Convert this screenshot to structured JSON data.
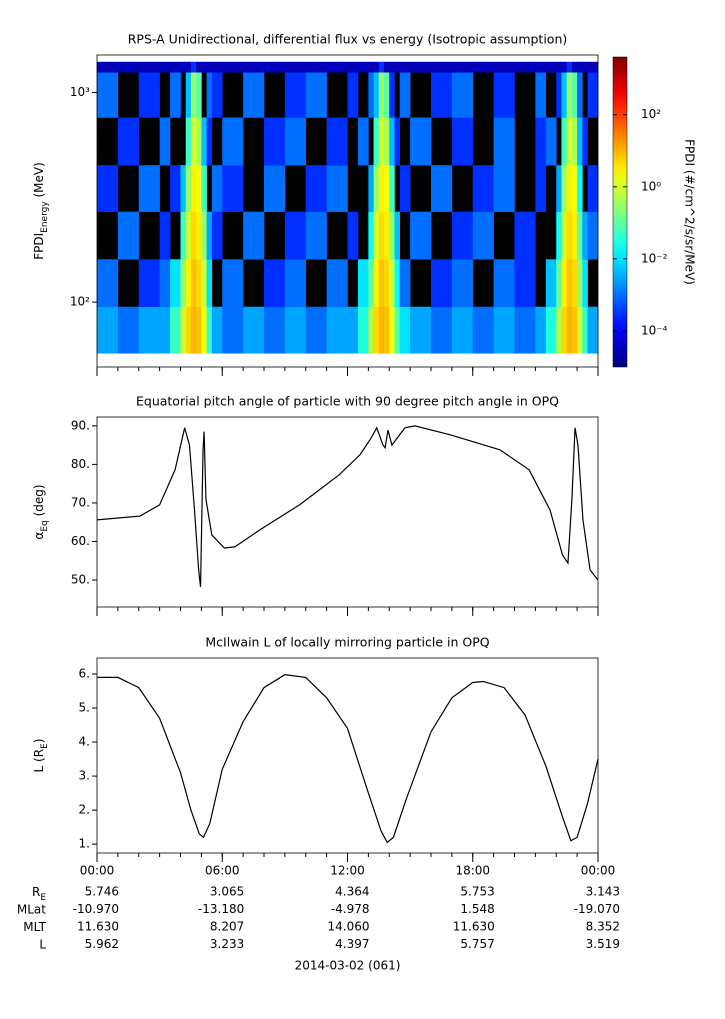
{
  "chart_data": [
    {
      "type": "heatmap",
      "title": "RPS-A Unidirectional, differential flux vs energy (Isotropic assumption)",
      "ylabel": {
        "text": "FPDI",
        "sub": "Energy",
        "tail": " (MeV)"
      },
      "zlabel": "FPDI (#/cm^2/s/sr/MeV)",
      "ylog": true,
      "ylim": [
        49,
        1510
      ],
      "yticks": [
        {
          "value": 100,
          "label": "10²"
        },
        {
          "value": 1000,
          "label": "10³"
        }
      ],
      "xlim": [
        0,
        24
      ],
      "xticks": [
        0,
        6,
        12,
        18,
        24
      ],
      "zlog": true,
      "zlim": [
        1e-05,
        4000
      ],
      "zticks": [
        {
          "value": 100,
          "label": "10²"
        },
        {
          "value": 1,
          "label": "10⁰"
        },
        {
          "value": 0.01,
          "label": "10⁻²"
        },
        {
          "value": 0.0001,
          "label": "10⁻⁴"
        }
      ],
      "colormap": "jet",
      "null_color": "#000000",
      "x_edges": [
        0,
        1,
        2,
        3,
        3.5,
        4,
        4.25,
        4.5,
        4.75,
        5,
        5.25,
        5.5,
        6,
        7,
        8,
        9,
        10,
        11,
        12,
        12.5,
        13,
        13.25,
        13.5,
        13.75,
        14,
        14.25,
        14.5,
        15,
        16,
        17,
        18,
        19,
        20,
        21,
        21.5,
        22,
        22.25,
        22.5,
        22.75,
        23,
        23.25,
        23.5,
        24
      ],
      "y_edges": [
        57,
        95,
        160,
        270,
        450,
        760,
        1250,
        1400
      ],
      "z": [
        [
          0.003,
          0.001,
          0.003,
          0.003,
          0.05,
          1,
          5,
          10,
          8,
          2,
          0.05,
          0.003,
          0.001,
          0.003,
          0.001,
          0.003,
          0.001,
          0.003,
          0.003,
          0.03,
          0.5,
          5,
          10,
          8,
          2,
          0.1,
          0.01,
          0.003,
          0.001,
          0.003,
          0.001,
          0.003,
          0.001,
          0.003,
          0.03,
          0.5,
          5,
          10,
          8,
          1,
          0.05,
          0.003
        ],
        [
          0.001,
          null,
          0.0003,
          0.001,
          0.01,
          0.3,
          3,
          8,
          5,
          1,
          0.01,
          null,
          0.001,
          null,
          0.0003,
          0.001,
          null,
          0.001,
          null,
          0.01,
          0.1,
          3,
          8,
          5,
          1,
          0.02,
          0.001,
          null,
          0.0003,
          0.001,
          null,
          0.001,
          0.0003,
          null,
          0.005,
          0.1,
          3,
          8,
          5,
          0.3,
          0.01,
          null
        ],
        [
          null,
          0.001,
          null,
          0.0003,
          null,
          0.05,
          1,
          5,
          3,
          0.3,
          0.003,
          0.0003,
          null,
          0.001,
          null,
          0.0003,
          0.001,
          null,
          0.0003,
          null,
          0.02,
          1,
          5,
          3,
          0.3,
          0.005,
          null,
          0.001,
          null,
          0.0003,
          0.001,
          null,
          0.0003,
          null,
          null,
          0.02,
          1,
          5,
          3,
          0.1,
          0.003,
          0.001
        ],
        [
          0.0003,
          null,
          0.001,
          null,
          0.0003,
          0.005,
          0.3,
          3,
          2,
          0.05,
          null,
          0.001,
          0.0003,
          null,
          0.001,
          null,
          0.0003,
          0.001,
          null,
          null,
          0.003,
          0.3,
          3,
          2,
          0.05,
          null,
          0.0003,
          null,
          0.001,
          null,
          0.0003,
          0.001,
          null,
          0.0003,
          null,
          0.003,
          0.3,
          3,
          2,
          0.02,
          null,
          0.0003
        ],
        [
          null,
          0.0003,
          null,
          0.001,
          null,
          null,
          0.05,
          1,
          0.5,
          0.005,
          0.0003,
          null,
          0.001,
          null,
          0.0003,
          0.001,
          null,
          0.0003,
          null,
          0.001,
          null,
          0.05,
          1,
          0.5,
          0.005,
          0.0003,
          null,
          0.001,
          null,
          0.0003,
          null,
          0.001,
          null,
          0.0003,
          0.001,
          null,
          0.05,
          1,
          0.5,
          0.005,
          0.0003,
          null
        ],
        [
          0.001,
          null,
          0.0003,
          null,
          0.001,
          null,
          0.005,
          0.3,
          0.1,
          null,
          0.001,
          0.0003,
          null,
          0.001,
          null,
          0.0003,
          0.001,
          null,
          0.0003,
          null,
          0.001,
          0.005,
          0.3,
          0.1,
          0.0003,
          null,
          0.001,
          null,
          0.0003,
          0.001,
          null,
          0.0003,
          null,
          0.001,
          null,
          0.0003,
          0.005,
          0.3,
          0.1,
          0.001,
          null,
          0.0003
        ],
        [
          3e-05,
          3e-05,
          3e-05,
          3e-05,
          3e-05,
          3e-05,
          3e-05,
          0.0003,
          3e-05,
          3e-05,
          3e-05,
          3e-05,
          3e-05,
          3e-05,
          3e-05,
          3e-05,
          3e-05,
          3e-05,
          3e-05,
          3e-05,
          3e-05,
          3e-05,
          0.0003,
          3e-05,
          3e-05,
          3e-05,
          3e-05,
          3e-05,
          3e-05,
          3e-05,
          3e-05,
          3e-05,
          3e-05,
          3e-05,
          3e-05,
          3e-05,
          3e-05,
          0.0003,
          3e-05,
          3e-05,
          3e-05,
          3e-05
        ]
      ]
    },
    {
      "type": "line",
      "title": "Equatorial pitch angle of particle with 90 degree pitch angle in OPQ",
      "ylabel": {
        "text": "α",
        "sub": "Eq",
        "tail": " (deg)"
      },
      "ylim": [
        43,
        92.3
      ],
      "yticks": [
        {
          "value": 50,
          "label": "50."
        },
        {
          "value": 60,
          "label": "60."
        },
        {
          "value": 70,
          "label": "70."
        },
        {
          "value": 80,
          "label": "80."
        },
        {
          "value": 90,
          "label": "90."
        }
      ],
      "xlim": [
        0,
        24
      ],
      "xticks": [
        0,
        6,
        12,
        18,
        24
      ],
      "color": "#000000",
      "x": [
        0,
        2.06,
        3.0,
        3.74,
        4.2,
        4.43,
        4.67,
        4.87,
        4.96,
        5.08,
        5.13,
        5.22,
        5.5,
        6.1,
        6.6,
        7.8,
        9.7,
        11.6,
        12.6,
        13.08,
        13.4,
        13.7,
        13.8,
        13.94,
        14.13,
        14.32,
        14.75,
        15.23,
        16.9,
        19.3,
        20.7,
        21.7,
        22.3,
        22.56,
        22.75,
        22.9,
        23.04,
        23.28,
        23.62,
        24
      ],
      "values": [
        65.6,
        66.6,
        69.5,
        78.6,
        89.5,
        85,
        68.2,
        52.6,
        48.2,
        83.8,
        88.5,
        70.9,
        61.7,
        58.3,
        58.6,
        63,
        69.5,
        77.3,
        82.5,
        86.4,
        89.5,
        85,
        84.3,
        88.9,
        85,
        86.4,
        89.5,
        90,
        87.7,
        83.8,
        78.6,
        68.2,
        56.5,
        54.4,
        70.9,
        89.5,
        85,
        65.6,
        52.6,
        50
      ]
    },
    {
      "type": "line",
      "title": "McIlwain L of locally mirroring particle in OPQ",
      "ylabel": {
        "text": "L (R",
        "sub": "E",
        "tail": ")"
      },
      "ylim": [
        0.74,
        6.47
      ],
      "yticks": [
        {
          "value": 1,
          "label": "1."
        },
        {
          "value": 2,
          "label": "2."
        },
        {
          "value": 3,
          "label": "3."
        },
        {
          "value": 4,
          "label": "4."
        },
        {
          "value": 5,
          "label": "5."
        },
        {
          "value": 6,
          "label": "6."
        }
      ],
      "xlim": [
        0,
        24
      ],
      "xticks": [
        {
          "value": 0,
          "label": "00:00"
        },
        {
          "value": 6,
          "label": "06:00"
        },
        {
          "value": 12,
          "label": "12:00"
        },
        {
          "value": 18,
          "label": "18:00"
        },
        {
          "value": 24,
          "label": "00:00"
        }
      ],
      "xminorticks": [
        0,
        1,
        2,
        3,
        4,
        5,
        6,
        7,
        8,
        9,
        10,
        11,
        12,
        13,
        14,
        15,
        16,
        17,
        18,
        19,
        20,
        21,
        22,
        23,
        24
      ],
      "color": "#000000",
      "x": [
        0,
        1,
        2,
        3,
        4,
        4.5,
        4.9,
        5.1,
        5.4,
        6,
        7,
        8,
        9,
        10,
        11,
        12,
        13,
        13.6,
        13.9,
        14.2,
        14.8,
        16,
        17,
        18,
        18.5,
        19.5,
        20.5,
        21.5,
        22.3,
        22.7,
        23,
        23.5,
        24
      ],
      "values": [
        5.9,
        5.9,
        5.6,
        4.7,
        3.1,
        2.0,
        1.3,
        1.2,
        1.6,
        3.2,
        4.6,
        5.6,
        5.98,
        5.9,
        5.3,
        4.4,
        2.5,
        1.4,
        1.05,
        1.2,
        2.3,
        4.3,
        5.3,
        5.75,
        5.78,
        5.6,
        4.8,
        3.3,
        1.8,
        1.1,
        1.2,
        2.2,
        3.5
      ]
    }
  ],
  "ephemeris": {
    "rows": [
      {
        "label": "R",
        "sub": "E",
        "values": [
          "5.746",
          "3.065",
          "4.364",
          "5.753",
          "3.143"
        ]
      },
      {
        "label": "MLat",
        "values": [
          "-10.970",
          "-13.180",
          "-4.978",
          "1.548",
          "-19.070"
        ]
      },
      {
        "label": "MLT",
        "values": [
          "11.630",
          "8.207",
          "14.060",
          "11.630",
          "8.352"
        ]
      },
      {
        "label": "L",
        "values": [
          "5.962",
          "3.233",
          "4.397",
          "5.757",
          "3.519"
        ]
      }
    ],
    "date": "2014-03-02 (061)"
  }
}
